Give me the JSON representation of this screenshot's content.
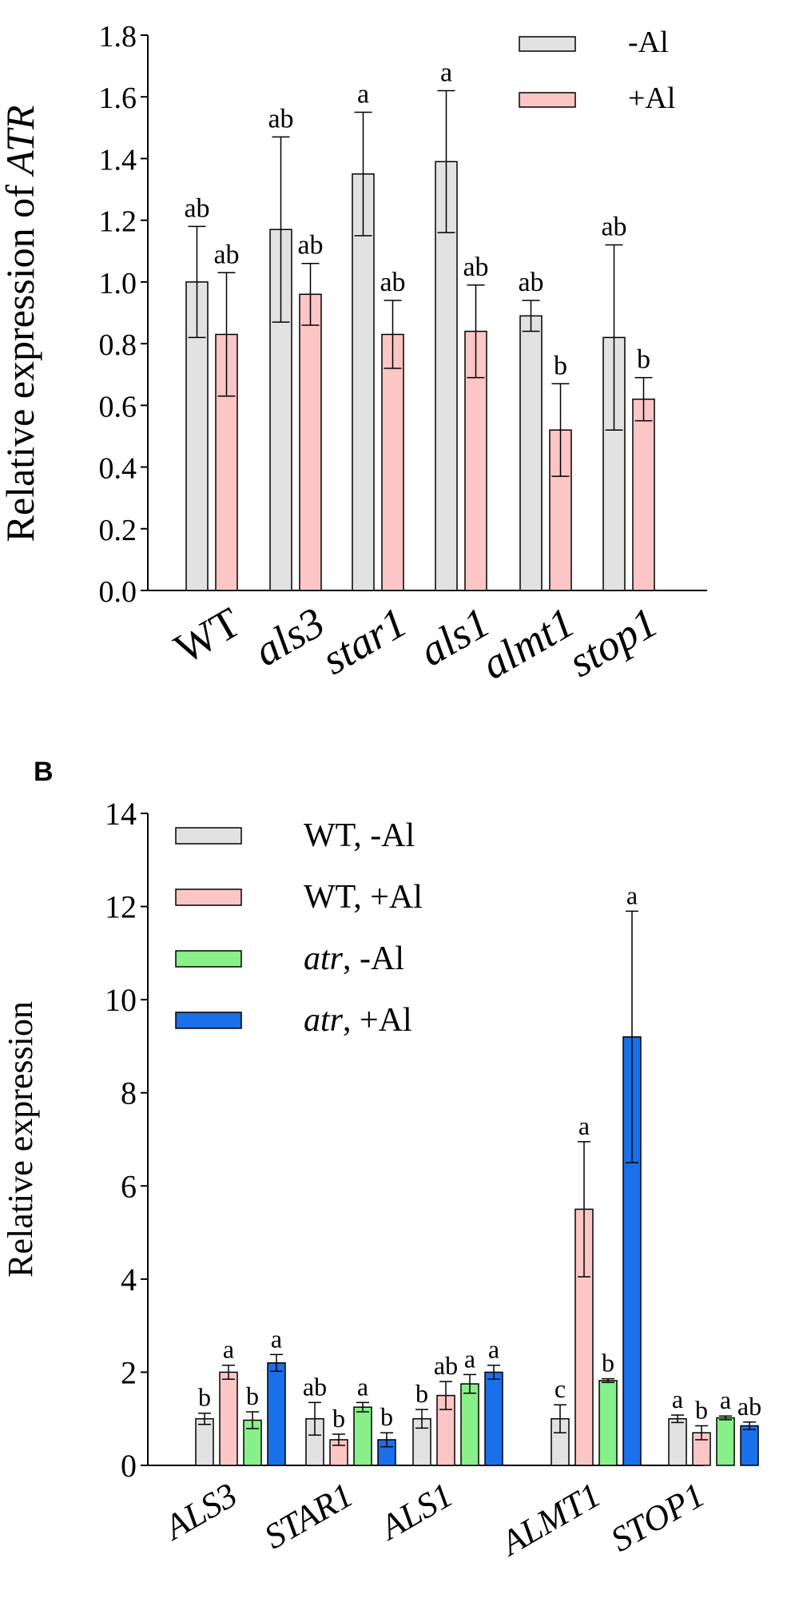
{
  "panel_b_label": "B",
  "chart_data": [
    {
      "type": "bar",
      "panel": "A",
      "ylabel_prefix": "Relative expression of ",
      "ylabel_gene": "ATR",
      "ylim": [
        0,
        1.8
      ],
      "yticks": [
        "0.0",
        "0.2",
        "0.4",
        "0.6",
        "0.8",
        "1.0",
        "1.2",
        "1.4",
        "1.6",
        "1.8"
      ],
      "ytick_values": [
        0,
        0.2,
        0.4,
        0.6,
        0.8,
        1.0,
        1.2,
        1.4,
        1.6,
        1.8
      ],
      "categories": [
        "WT",
        "als3",
        "star1",
        "als1",
        "almt1",
        "stop1"
      ],
      "category_italic": [
        false,
        true,
        true,
        true,
        true,
        true
      ],
      "legend_position": "top-right",
      "series": [
        {
          "name": "-Al",
          "color": "#e2e2e2",
          "values": [
            1.0,
            1.17,
            1.35,
            1.39,
            0.89,
            0.82
          ],
          "errors": [
            0.18,
            0.3,
            0.2,
            0.23,
            0.05,
            0.3
          ],
          "letters": [
            "ab",
            "ab",
            "a",
            "a",
            "ab",
            "ab"
          ]
        },
        {
          "name": "+Al",
          "color": "#fcc6c6",
          "values": [
            0.83,
            0.96,
            0.83,
            0.84,
            0.52,
            0.62
          ],
          "errors": [
            0.2,
            0.1,
            0.11,
            0.15,
            0.15,
            0.07
          ],
          "letters": [
            "ab",
            "ab",
            "ab",
            "ab",
            "b",
            "b"
          ]
        }
      ]
    },
    {
      "type": "bar",
      "panel": "B",
      "ylabel": "Relative expression",
      "ylim": [
        0,
        14
      ],
      "yticks": [
        "0",
        "2",
        "4",
        "6",
        "8",
        "10",
        "12",
        "14"
      ],
      "ytick_values": [
        0,
        2,
        4,
        6,
        8,
        10,
        12,
        14
      ],
      "categories": [
        "ALS3",
        "STAR1",
        "ALS1",
        "ALMT1",
        "STOP1"
      ],
      "legend_position": "top-left",
      "series": [
        {
          "name_prefix": "WT",
          "name_italic": false,
          "name_suffix": ", -Al",
          "color": "#e2e2e2",
          "values": [
            1.0,
            1.0,
            1.0,
            1.0,
            1.0
          ],
          "errors": [
            0.12,
            0.35,
            0.2,
            0.3,
            0.08
          ],
          "letters": [
            "b",
            "ab",
            "b",
            "c",
            "a"
          ]
        },
        {
          "name_prefix": "WT",
          "name_italic": false,
          "name_suffix": ", +Al",
          "color": "#fcc6c6",
          "values": [
            2.0,
            0.55,
            1.5,
            5.5,
            0.7
          ],
          "errors": [
            0.15,
            0.12,
            0.3,
            1.45,
            0.15
          ],
          "letters": [
            "a",
            "b",
            "ab",
            "a",
            "b"
          ]
        },
        {
          "name_prefix": "atr",
          "name_italic": true,
          "name_suffix": ", -Al",
          "color": "#88f088",
          "values": [
            0.97,
            1.25,
            1.75,
            1.82,
            1.02
          ],
          "errors": [
            0.18,
            0.1,
            0.2,
            0.04,
            0.04
          ],
          "letters": [
            "b",
            "a",
            "a",
            "b",
            "a"
          ]
        },
        {
          "name_prefix": "atr",
          "name_italic": true,
          "name_suffix": ", +Al",
          "color": "#1a70ea",
          "values": [
            2.2,
            0.55,
            2.0,
            9.2,
            0.85
          ],
          "errors": [
            0.18,
            0.15,
            0.15,
            2.7,
            0.08
          ],
          "letters": [
            "a",
            "b",
            "a",
            "a",
            "ab"
          ]
        }
      ]
    }
  ]
}
